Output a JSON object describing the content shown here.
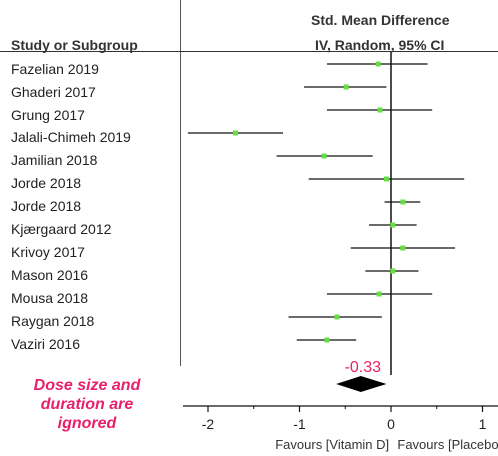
{
  "header": {
    "col_study": "Study or Subgroup",
    "col_effect_line1": "Std. Mean Difference",
    "col_effect_line2": "IV, Random, 95% CI"
  },
  "chart_data": {
    "type": "forest",
    "studies": [
      {
        "name": "Fazelian 2019",
        "est": -0.14,
        "lo": -0.7,
        "hi": 0.4
      },
      {
        "name": "Ghaderi 2017",
        "est": -0.49,
        "lo": -0.95,
        "hi": -0.05
      },
      {
        "name": "Grung 2017",
        "est": -0.12,
        "lo": -0.7,
        "hi": 0.45
      },
      {
        "name": "Jalali-Chimeh 2019",
        "est": -1.7,
        "lo": -2.22,
        "hi": -1.18
      },
      {
        "name": "Jamilian 2018",
        "est": -0.73,
        "lo": -1.25,
        "hi": -0.2
      },
      {
        "name": "Jorde 2018",
        "est": -0.05,
        "lo": -0.9,
        "hi": 0.8
      },
      {
        "name": "Jorde 2018",
        "est": 0.13,
        "lo": -0.07,
        "hi": 0.32
      },
      {
        "name": "Kjærgaard 2012",
        "est": 0.02,
        "lo": -0.24,
        "hi": 0.28
      },
      {
        "name": "Krivoy 2017",
        "est": 0.13,
        "lo": -0.44,
        "hi": 0.7
      },
      {
        "name": "Mason 2016",
        "est": 0.02,
        "lo": -0.28,
        "hi": 0.3
      },
      {
        "name": "Mousa 2018",
        "est": -0.13,
        "lo": -0.7,
        "hi": 0.45
      },
      {
        "name": "Raygan 2018",
        "est": -0.59,
        "lo": -1.12,
        "hi": -0.1
      },
      {
        "name": "Vaziri 2016",
        "est": -0.7,
        "lo": -1.03,
        "hi": -0.38
      }
    ],
    "pooled": {
      "est": -0.33,
      "lo": -0.6,
      "hi": -0.05,
      "label": "-0.33"
    },
    "x_ticks": [
      -2,
      -1,
      0,
      1
    ],
    "x_tick_labels": [
      "-2",
      "-1",
      "0",
      "1"
    ],
    "xlim": [
      -2.3,
      1.2
    ],
    "favours_left": "Favours [Vitamin D]",
    "favours_right": "Favours [Placebo]",
    "colors": {
      "marker": "#66dd44",
      "line": "#111111",
      "pooled": "#000000",
      "annotation": "#e8206a"
    }
  },
  "annotation": {
    "line1": "Dose size and",
    "line2": "duration are",
    "line3": "ignored"
  }
}
